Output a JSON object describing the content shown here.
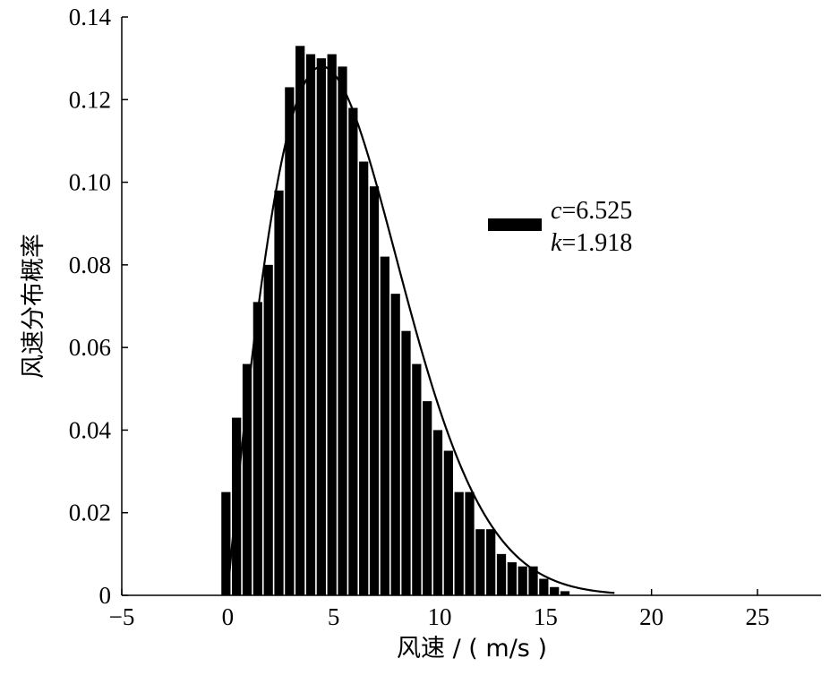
{
  "chart_data": {
    "type": "bar",
    "xlabel": "风速 / ( m/s )",
    "ylabel": "风速分布概率",
    "xlim": [
      -5,
      28
    ],
    "ylim": [
      0,
      0.14
    ],
    "xticks": [
      -5,
      0,
      5,
      10,
      15,
      20,
      25
    ],
    "yticks": [
      0,
      0.02,
      0.04,
      0.06,
      0.08,
      0.1,
      0.12,
      0.14
    ],
    "xtick_labels": [
      "−5",
      "0",
      "5",
      "10",
      "15",
      "20",
      "25"
    ],
    "ytick_labels": [
      "0",
      "0.02",
      "0.04",
      "0.06",
      "0.08",
      "0.10",
      "0.12",
      "0.14"
    ],
    "bins": {
      "x_start": [
        -0.3,
        0.2,
        0.7,
        1.2,
        1.7,
        2.2,
        2.7,
        3.2,
        3.7,
        4.2,
        4.7,
        5.2,
        5.7,
        6.2,
        6.7,
        7.2,
        7.7,
        8.2,
        8.7,
        9.2,
        9.7,
        10.2,
        10.7,
        11.2,
        11.7,
        12.2,
        12.7,
        13.2,
        13.7,
        14.2,
        14.7,
        15.2,
        15.7
      ],
      "width": 0.5,
      "values": [
        0.025,
        0.043,
        0.056,
        0.071,
        0.08,
        0.098,
        0.123,
        0.133,
        0.131,
        0.13,
        0.131,
        0.128,
        0.118,
        0.105,
        0.099,
        0.082,
        0.073,
        0.064,
        0.056,
        0.047,
        0.04,
        0.035,
        0.025,
        0.025,
        0.016,
        0.016,
        0.01,
        0.008,
        0.007,
        0.007,
        0.004,
        0.002,
        0.001
      ]
    },
    "fit_curve": {
      "type": "weibull",
      "parameters": {
        "c": 6.525,
        "k": 1.918
      }
    },
    "legend": {
      "position": "upper-right",
      "lines": [
        {
          "italic": "c",
          "rest": "=6.525"
        },
        {
          "italic": "k",
          "rest": "=1.918"
        }
      ]
    },
    "grid": false
  }
}
